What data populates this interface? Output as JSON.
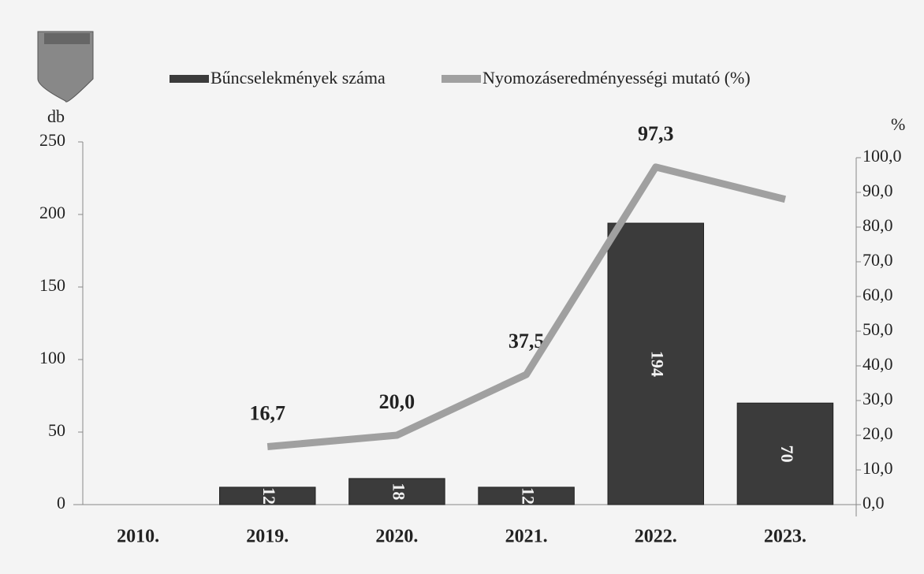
{
  "chart_data": {
    "type": "bar+line",
    "categories": [
      "2010.",
      "2019.",
      "2020.",
      "2021.",
      "2022.",
      "2023."
    ],
    "series": [
      {
        "name": "Bűncselekmények száma",
        "type": "bar",
        "color": "#3b3b3b",
        "values": [
          null,
          12,
          18,
          12,
          194,
          70
        ]
      },
      {
        "name": "Nyomozáseredményességi mutató (%)",
        "type": "line",
        "axis": "y2",
        "color": "#a0a0a0",
        "values": [
          null,
          16.7,
          20.0,
          37.5,
          97.3,
          88
        ],
        "value_labels": [
          null,
          "16,7",
          "20,0",
          "37,5",
          "97,3",
          null
        ]
      }
    ],
    "y_label": "db",
    "y2_label": "%",
    "ylim": [
      0,
      250
    ],
    "yticks": [
      0,
      50,
      100,
      150,
      200,
      250
    ],
    "y2lim": [
      0,
      100
    ],
    "y2ticks": [
      {
        "value": 0,
        "label": "0,0"
      },
      {
        "value": 10,
        "label": "10,0"
      },
      {
        "value": 20,
        "label": "20,0"
      },
      {
        "value": 30,
        "label": "30,0"
      },
      {
        "value": 40,
        "label": "40,0"
      },
      {
        "value": 50,
        "label": "50,0"
      },
      {
        "value": 60,
        "label": "60,0"
      },
      {
        "value": 70,
        "label": "70,0"
      },
      {
        "value": 80,
        "label": "80,0"
      },
      {
        "value": 90,
        "label": "90,0"
      },
      {
        "value": 100,
        "label": "100,0"
      }
    ],
    "legend": "top"
  }
}
